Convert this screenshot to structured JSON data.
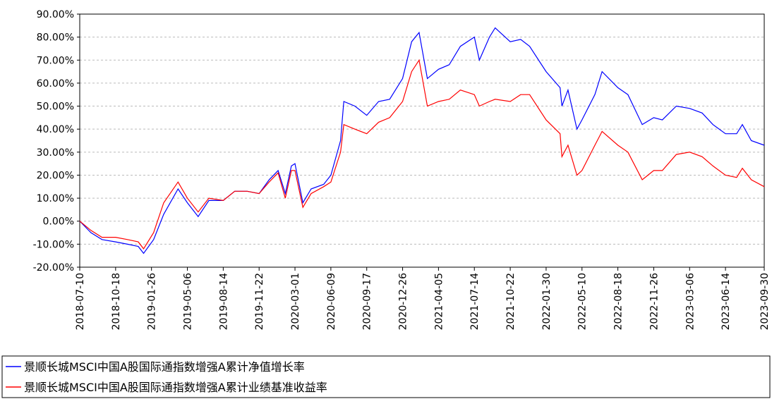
{
  "chart_data": {
    "type": "line",
    "x": [
      "2018-07-10",
      "2018-08-10",
      "2018-09-10",
      "2018-10-18",
      "2018-11-20",
      "2018-12-20",
      "2019-01-04",
      "2019-02-01",
      "2019-03-01",
      "2019-04-10",
      "2019-05-06",
      "2019-06-05",
      "2019-07-05",
      "2019-08-14",
      "2019-09-15",
      "2019-10-20",
      "2019-11-22",
      "2019-12-20",
      "2020-01-14",
      "2020-02-03",
      "2020-02-20",
      "2020-03-01",
      "2020-03-23",
      "2020-04-15",
      "2020-05-20",
      "2020-06-09",
      "2020-07-06",
      "2020-07-15",
      "2020-08-15",
      "2020-09-17",
      "2020-10-20",
      "2020-11-20",
      "2020-12-26",
      "2021-01-20",
      "2021-02-10",
      "2021-03-05",
      "2021-04-05",
      "2021-05-05",
      "2021-06-05",
      "2021-07-14",
      "2021-07-28",
      "2021-08-25",
      "2021-09-10",
      "2021-10-22",
      "2021-11-20",
      "2021-12-15",
      "2022-01-30",
      "2022-03-10",
      "2022-03-15",
      "2022-04-01",
      "2022-04-26",
      "2022-05-10",
      "2022-06-15",
      "2022-07-05",
      "2022-08-18",
      "2022-09-15",
      "2022-10-25",
      "2022-11-26",
      "2022-12-20",
      "2023-01-28",
      "2023-03-06",
      "2023-04-10",
      "2023-05-10",
      "2023-06-14",
      "2023-07-15",
      "2023-07-31",
      "2023-08-25",
      "2023-09-30"
    ],
    "series": [
      {
        "name": "景顺长城MSCI中国A股国际通指数增强A累计净值增长率",
        "color": "#0000ff",
        "values": [
          0,
          -5,
          -8,
          -9,
          -10,
          -11,
          -14,
          -8,
          3,
          14,
          8,
          2,
          9,
          9,
          13,
          13,
          12,
          18,
          22,
          12,
          24,
          25,
          8,
          14,
          16,
          20,
          35,
          52,
          50,
          46,
          52,
          53,
          62,
          78,
          82,
          62,
          66,
          68,
          76,
          80,
          70,
          80,
          84,
          78,
          79,
          76,
          65,
          58,
          50,
          57,
          40,
          44,
          55,
          65,
          58,
          55,
          42,
          45,
          44,
          50,
          49,
          47,
          42,
          38,
          38,
          42,
          35,
          33
        ]
      },
      {
        "name": "景顺长城MSCI中国A股国际通指数增强A累计业绩基准收益率",
        "color": "#ff0000",
        "values": [
          0,
          -4,
          -7,
          -7,
          -8,
          -9,
          -12,
          -5,
          8,
          17,
          10,
          4,
          10,
          9,
          13,
          13,
          12,
          17,
          21,
          10,
          22,
          22,
          6,
          12,
          15,
          17,
          30,
          42,
          40,
          38,
          43,
          45,
          52,
          65,
          70,
          50,
          52,
          53,
          57,
          55,
          50,
          52,
          53,
          52,
          55,
          55,
          44,
          38,
          28,
          33,
          20,
          22,
          33,
          39,
          33,
          30,
          18,
          22,
          22,
          29,
          30,
          28,
          24,
          20,
          19,
          23,
          18,
          15
        ]
      }
    ],
    "xticks": [
      "2018-07-10",
      "2018-10-18",
      "2019-01-26",
      "2019-05-06",
      "2019-08-14",
      "2019-11-22",
      "2020-03-01",
      "2020-06-09",
      "2020-09-17",
      "2020-12-26",
      "2021-04-05",
      "2021-07-14",
      "2021-10-22",
      "2022-01-30",
      "2022-05-10",
      "2022-08-18",
      "2022-11-26",
      "2023-03-06",
      "2023-06-14",
      "2023-09-30"
    ],
    "ylim": [
      -20,
      90
    ],
    "yticks": [
      {
        "value": -20,
        "label": "-20.00%"
      },
      {
        "value": -10,
        "label": "-10.00%"
      },
      {
        "value": 0,
        "label": "0.00%"
      },
      {
        "value": 10,
        "label": "10.00%"
      },
      {
        "value": 20,
        "label": "20.00%"
      },
      {
        "value": 30,
        "label": "30.00%"
      },
      {
        "value": 40,
        "label": "40.00%"
      },
      {
        "value": 50,
        "label": "50.00%"
      },
      {
        "value": 60,
        "label": "60.00%"
      },
      {
        "value": 70,
        "label": "70.00%"
      },
      {
        "value": 80,
        "label": "80.00%"
      },
      {
        "value": 90,
        "label": "90.00%"
      }
    ],
    "grid": true,
    "legend": "bottom-left"
  }
}
